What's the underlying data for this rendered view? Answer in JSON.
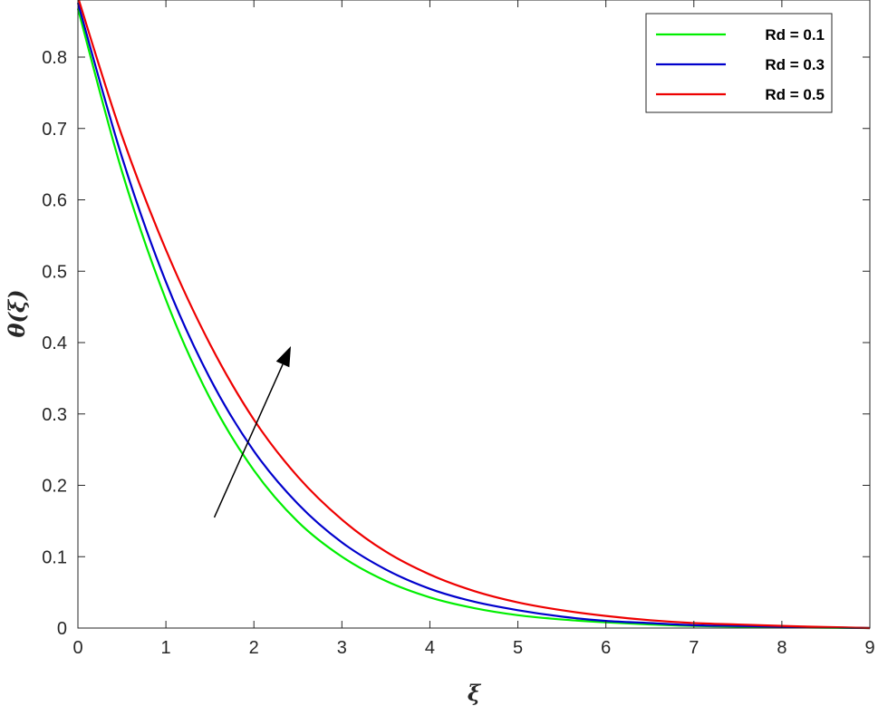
{
  "chart_data": {
    "type": "line",
    "xlabel": "ξ",
    "ylabel": "θ(ξ)",
    "xlim": [
      0,
      9
    ],
    "ylim": [
      0,
      0.88
    ],
    "x_ticks": [
      "0",
      "1",
      "2",
      "3",
      "4",
      "5",
      "6",
      "7",
      "8",
      "9"
    ],
    "y_ticks": [
      "0",
      "0.1",
      "0.2",
      "0.3",
      "0.4",
      "0.5",
      "0.6",
      "0.7",
      "0.8"
    ],
    "grid": false,
    "legend_position": "top-right",
    "x": [
      0,
      0.5,
      1,
      1.5,
      2,
      2.5,
      3,
      3.5,
      4,
      4.5,
      5,
      5.5,
      6,
      6.5,
      7,
      7.5,
      8,
      8.5,
      9
    ],
    "series": [
      {
        "name": "Rd = 0.1",
        "color": "#00ee00",
        "values": [
          0.868,
          0.64,
          0.46,
          0.322,
          0.221,
          0.149,
          0.1,
          0.066,
          0.043,
          0.028,
          0.018,
          0.012,
          0.008,
          0.005,
          0.003,
          0.002,
          0.001,
          0.0005,
          0
        ]
      },
      {
        "name": "Rd = 0.3",
        "color": "#0000cc",
        "values": [
          0.876,
          0.66,
          0.485,
          0.35,
          0.248,
          0.174,
          0.12,
          0.082,
          0.055,
          0.037,
          0.025,
          0.016,
          0.01,
          0.007,
          0.004,
          0.003,
          0.002,
          0.001,
          0
        ]
      },
      {
        "name": "Rd = 0.5",
        "color": "#ee0000",
        "values": [
          0.884,
          0.69,
          0.53,
          0.398,
          0.292,
          0.212,
          0.152,
          0.107,
          0.075,
          0.052,
          0.036,
          0.025,
          0.017,
          0.011,
          0.007,
          0.005,
          0.003,
          0.0015,
          0
        ]
      }
    ],
    "annotation": {
      "type": "arrow",
      "direction": "increasing Rd",
      "from": [
        1.55,
        0.155
      ],
      "to": [
        2.42,
        0.395
      ]
    }
  }
}
